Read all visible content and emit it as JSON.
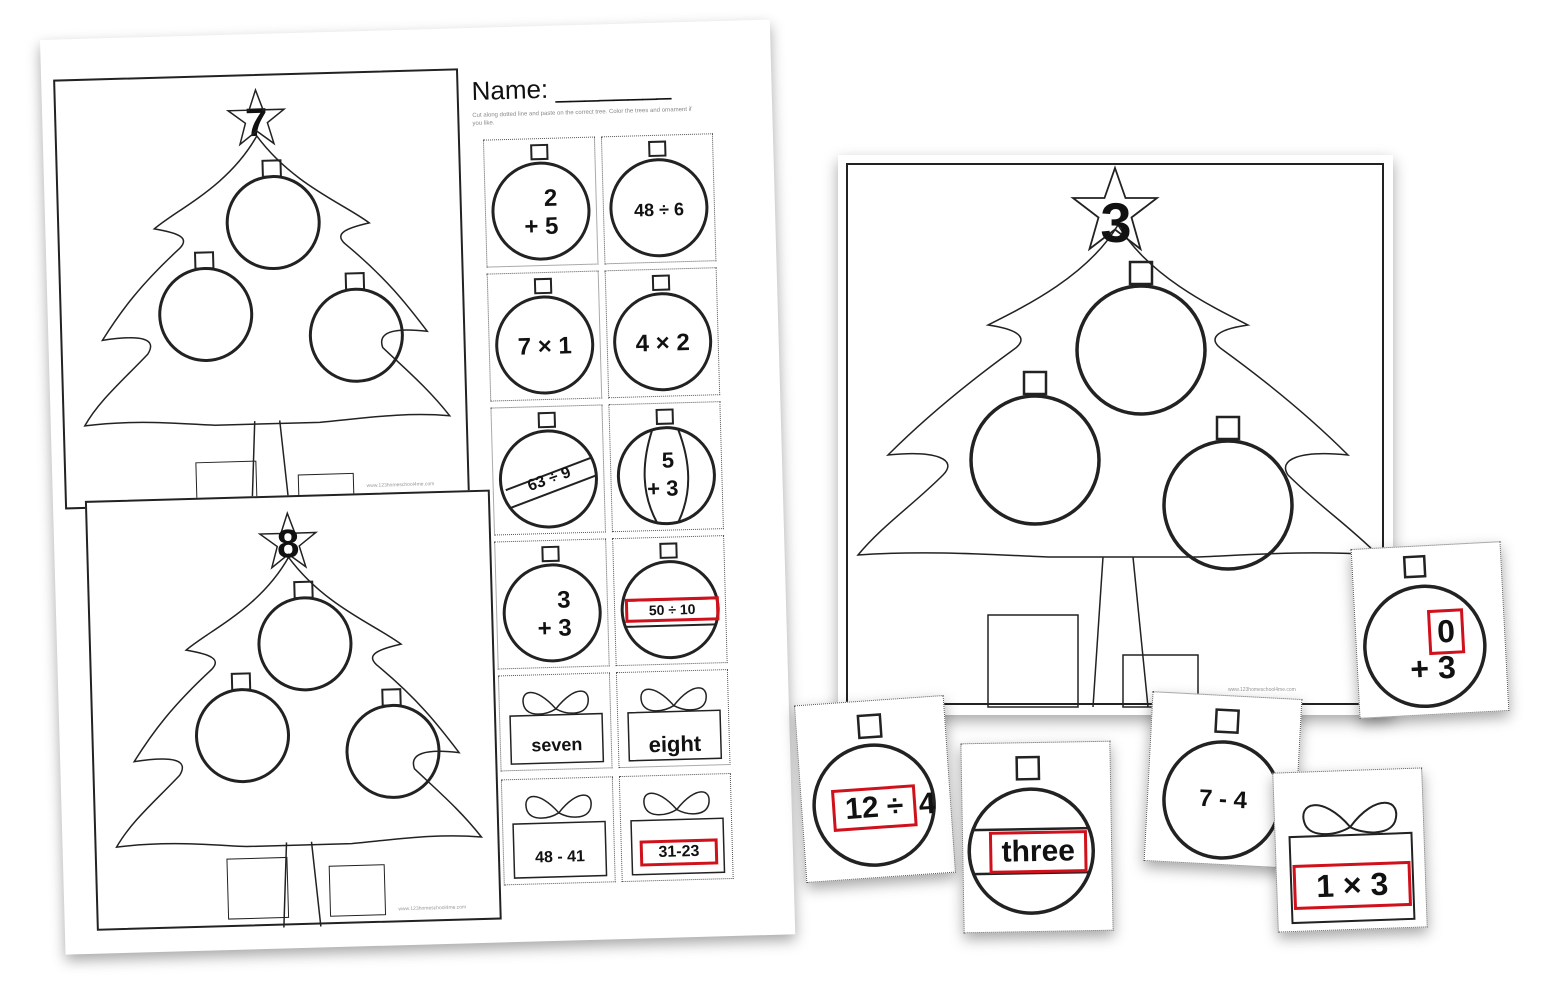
{
  "worksheet": {
    "name_label": "Name: ________",
    "instructions": "Cut along dotted line and paste on the correct tree. Color the trees and ornament if you like.",
    "footer": "www.123homeschool4me.com",
    "trees": [
      {
        "star_number": "7"
      },
      {
        "star_number": "8"
      }
    ],
    "cards": [
      {
        "text": "2",
        "text2": "+ 5",
        "kind": "vertical"
      },
      {
        "text": "48 ÷ 6",
        "kind": "plain"
      },
      {
        "text": "7 × 1",
        "kind": "plain"
      },
      {
        "text": "4 × 2",
        "kind": "plain"
      },
      {
        "text": "63 ÷ 9",
        "kind": "band-tilt"
      },
      {
        "text": "5",
        "text2": "+ 3",
        "kind": "stripes"
      },
      {
        "text": "3",
        "text2": "+ 3",
        "kind": "vertical"
      },
      {
        "text": "50 ÷ 10",
        "kind": "band",
        "highlighted": true
      },
      {
        "text": "seven",
        "kind": "gift"
      },
      {
        "text": "eight",
        "kind": "gift"
      },
      {
        "text": "48 - 41",
        "kind": "gift"
      },
      {
        "text": "31-23",
        "kind": "gift",
        "highlighted": true
      }
    ]
  },
  "big_tree": {
    "star_number": "3",
    "footer": "www.123homeschool4me.com"
  },
  "loose_cards": [
    {
      "text": "0",
      "text2": "+ 3",
      "highlighted": true
    },
    {
      "text": "12 ÷",
      "text2": "4",
      "highlighted": true
    },
    {
      "text": "three",
      "highlighted": true
    },
    {
      "text": "7 - 4",
      "highlighted": false
    },
    {
      "text": "1 × 3",
      "highlighted": true
    }
  ],
  "colors": {
    "highlight": "#d0101a",
    "ink": "#111111"
  }
}
